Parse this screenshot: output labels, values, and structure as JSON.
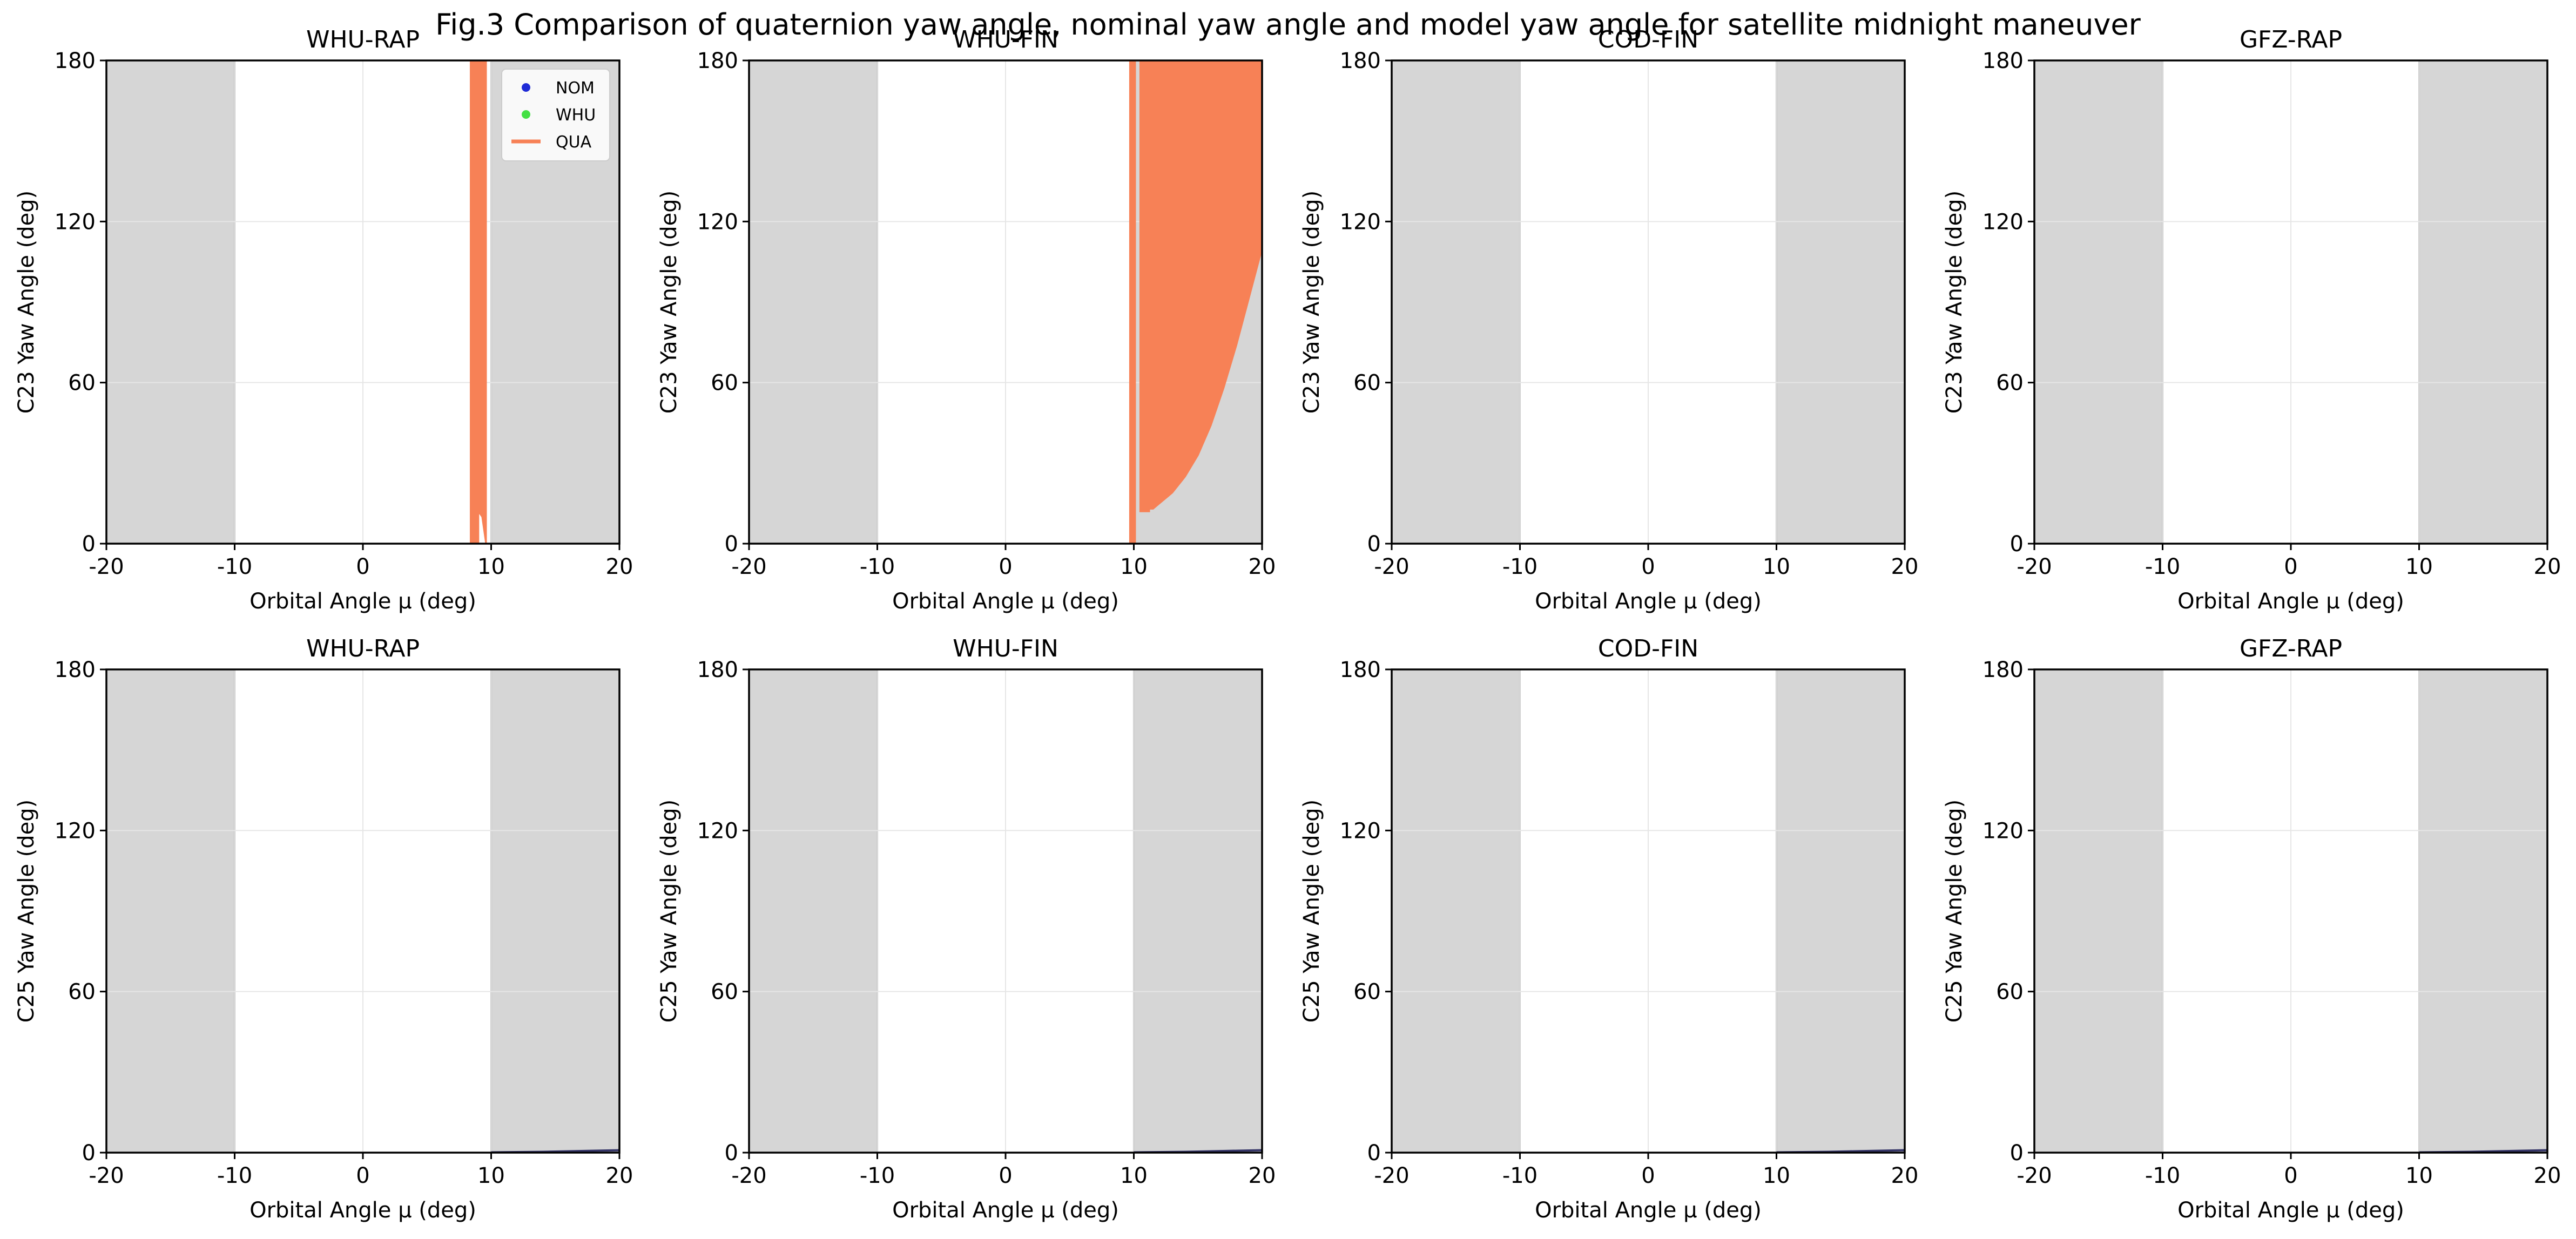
{
  "figure": {
    "title": "Fig.3 Comparison of quaternion yaw angle, nominal yaw angle and model yaw angle for satellite midnight maneuver"
  },
  "colors": {
    "NOM": "#1f2bd6",
    "WHU": "#44e044",
    "QUA": "#f78156",
    "shade": "#d6d6d6",
    "grid": "#e6e6e6"
  },
  "chart_data": [
    {
      "type": "line",
      "title": "WHU-RAP",
      "xlabel": "Orbital Angle μ (deg)",
      "ylabel": "C23 Yaw Angle (deg)",
      "xlim": [
        -20,
        20
      ],
      "ylim": [
        0,
        180
      ],
      "xticks": [
        -20,
        -10,
        0,
        10,
        20
      ],
      "yticks": [
        0,
        60,
        120,
        180
      ],
      "xtick_labels": [
        "-20",
        "-10",
        "0",
        "10",
        "20"
      ],
      "ytick_labels": [
        "0",
        "60",
        "120",
        "180"
      ],
      "grid": true,
      "shaded_x": [
        [
          -20,
          -10
        ],
        [
          10,
          20
        ]
      ],
      "legend": {
        "position": "upper right",
        "entries": [
          {
            "label": "NOM",
            "marker": "dot",
            "color": "#1f2bd6"
          },
          {
            "label": "WHU",
            "marker": "dot",
            "color": "#44e044"
          },
          {
            "label": "QUA",
            "marker": "line",
            "color": "#f78156"
          }
        ]
      },
      "series": [
        {
          "name": "QUA",
          "fill": true,
          "low": [
            [
              8.4,
              0
            ],
            [
              9.0,
              0
            ],
            [
              9.0,
              12
            ],
            [
              9.3,
              10
            ],
            [
              9.6,
              0
            ],
            [
              9.6,
              180
            ],
            [
              8.4,
              180
            ]
          ]
        }
      ]
    },
    {
      "type": "line",
      "title": "WHU-FIN",
      "xlabel": "Orbital Angle μ (deg)",
      "ylabel": "C23 Yaw Angle (deg)",
      "xlim": [
        -20,
        20
      ],
      "ylim": [
        0,
        180
      ],
      "xticks": [
        -20,
        -10,
        0,
        10,
        20
      ],
      "yticks": [
        0,
        60,
        120,
        180
      ],
      "xtick_labels": [
        "-20",
        "-10",
        "0",
        "10",
        "20"
      ],
      "ytick_labels": [
        "0",
        "60",
        "120",
        "180"
      ],
      "grid": true,
      "shaded_x": [
        [
          -20,
          -10
        ],
        [
          10,
          20
        ]
      ],
      "legend": null,
      "series": [
        {
          "name": "QUA",
          "fill": true,
          "low": [
            [
              9.7,
              0
            ],
            [
              10.1,
              0
            ],
            [
              10.1,
              180
            ],
            [
              9.7,
              180
            ]
          ]
        },
        {
          "name": "QUA",
          "fill": true,
          "low": [
            [
              10.5,
              180
            ],
            [
              10.5,
              12
            ],
            [
              11.2,
              12
            ],
            [
              11.2,
              13
            ],
            [
              11.5,
              13
            ],
            [
              12,
              15
            ],
            [
              13,
              19
            ],
            [
              14,
              25
            ],
            [
              15,
              33
            ],
            [
              16,
              44
            ],
            [
              17,
              58
            ],
            [
              18,
              74
            ],
            [
              19,
              92
            ],
            [
              20,
              110
            ],
            [
              20,
              180
            ]
          ]
        }
      ]
    },
    {
      "type": "line",
      "title": "COD-FIN",
      "xlabel": "Orbital Angle μ (deg)",
      "ylabel": "C23 Yaw Angle (deg)",
      "xlim": [
        -20,
        20
      ],
      "ylim": [
        0,
        180
      ],
      "xticks": [
        -20,
        -10,
        0,
        10,
        20
      ],
      "yticks": [
        0,
        60,
        120,
        180
      ],
      "xtick_labels": [
        "-20",
        "-10",
        "0",
        "10",
        "20"
      ],
      "ytick_labels": [
        "0",
        "60",
        "120",
        "180"
      ],
      "grid": true,
      "shaded_x": [
        [
          -20,
          -10
        ],
        [
          10,
          20
        ]
      ],
      "legend": null,
      "series": []
    },
    {
      "type": "line",
      "title": "GFZ-RAP",
      "xlabel": "Orbital Angle μ (deg)",
      "ylabel": "C23 Yaw Angle (deg)",
      "xlim": [
        -20,
        20
      ],
      "ylim": [
        0,
        180
      ],
      "xticks": [
        -20,
        -10,
        0,
        10,
        20
      ],
      "yticks": [
        0,
        60,
        120,
        180
      ],
      "xtick_labels": [
        "-20",
        "-10",
        "0",
        "10",
        "20"
      ],
      "ytick_labels": [
        "0",
        "60",
        "120",
        "180"
      ],
      "grid": true,
      "shaded_x": [
        [
          -20,
          -10
        ],
        [
          10,
          20
        ]
      ],
      "legend": null,
      "series": []
    },
    {
      "type": "line",
      "title": "WHU-RAP",
      "xlabel": "Orbital Angle μ (deg)",
      "ylabel": "C25 Yaw Angle (deg)",
      "xlim": [
        -20,
        20
      ],
      "ylim": [
        0,
        180
      ],
      "xticks": [
        -20,
        -10,
        0,
        10,
        20
      ],
      "yticks": [
        0,
        60,
        120,
        180
      ],
      "xtick_labels": [
        "-20",
        "-10",
        "0",
        "10",
        "20"
      ],
      "ytick_labels": [
        "0",
        "60",
        "120",
        "180"
      ],
      "grid": true,
      "shaded_x": [
        [
          -20,
          -10
        ],
        [
          10,
          20
        ]
      ],
      "legend": null,
      "series": [
        {
          "name": "NOM",
          "fill": false,
          "low": [
            [
              10,
              0.1
            ],
            [
              12,
              0.2
            ],
            [
              14,
              0.3
            ],
            [
              16,
              0.5
            ],
            [
              18,
              0.7
            ],
            [
              20,
              0.9
            ]
          ]
        }
      ]
    },
    {
      "type": "line",
      "title": "WHU-FIN",
      "xlabel": "Orbital Angle μ (deg)",
      "ylabel": "C25 Yaw Angle (deg)",
      "xlim": [
        -20,
        20
      ],
      "ylim": [
        0,
        180
      ],
      "xticks": [
        -20,
        -10,
        0,
        10,
        20
      ],
      "yticks": [
        0,
        60,
        120,
        180
      ],
      "xtick_labels": [
        "-20",
        "-10",
        "0",
        "10",
        "20"
      ],
      "ytick_labels": [
        "0",
        "60",
        "120",
        "180"
      ],
      "grid": true,
      "shaded_x": [
        [
          -20,
          -10
        ],
        [
          10,
          20
        ]
      ],
      "legend": null,
      "series": [
        {
          "name": "NOM",
          "fill": false,
          "low": [
            [
              10,
              0.1
            ],
            [
              12,
              0.2
            ],
            [
              14,
              0.3
            ],
            [
              16,
              0.5
            ],
            [
              18,
              0.7
            ],
            [
              20,
              0.9
            ]
          ]
        }
      ]
    },
    {
      "type": "line",
      "title": "COD-FIN",
      "xlabel": "Orbital Angle μ (deg)",
      "ylabel": "C25 Yaw Angle (deg)",
      "xlim": [
        -20,
        20
      ],
      "ylim": [
        0,
        180
      ],
      "xticks": [
        -20,
        -10,
        0,
        10,
        20
      ],
      "yticks": [
        0,
        60,
        120,
        180
      ],
      "xtick_labels": [
        "-20",
        "-10",
        "0",
        "10",
        "20"
      ],
      "ytick_labels": [
        "0",
        "60",
        "120",
        "180"
      ],
      "grid": true,
      "shaded_x": [
        [
          -20,
          -10
        ],
        [
          10,
          20
        ]
      ],
      "legend": null,
      "series": [
        {
          "name": "NOM",
          "fill": false,
          "low": [
            [
              10,
              0.1
            ],
            [
              12,
              0.2
            ],
            [
              14,
              0.3
            ],
            [
              16,
              0.5
            ],
            [
              18,
              0.7
            ],
            [
              20,
              0.9
            ]
          ]
        }
      ]
    },
    {
      "type": "line",
      "title": "GFZ-RAP",
      "xlabel": "Orbital Angle μ (deg)",
      "ylabel": "C25 Yaw Angle (deg)",
      "xlim": [
        -20,
        20
      ],
      "ylim": [
        0,
        180
      ],
      "xticks": [
        -20,
        -10,
        0,
        10,
        20
      ],
      "yticks": [
        0,
        60,
        120,
        180
      ],
      "xtick_labels": [
        "-20",
        "-10",
        "0",
        "10",
        "20"
      ],
      "ytick_labels": [
        "0",
        "60",
        "120",
        "180"
      ],
      "grid": true,
      "shaded_x": [
        [
          -20,
          -10
        ],
        [
          10,
          20
        ]
      ],
      "legend": null,
      "series": [
        {
          "name": "NOM",
          "fill": false,
          "low": [
            [
              10,
              0.1
            ],
            [
              12,
              0.2
            ],
            [
              14,
              0.3
            ],
            [
              16,
              0.5
            ],
            [
              18,
              0.7
            ],
            [
              20,
              0.9
            ]
          ]
        }
      ]
    }
  ]
}
